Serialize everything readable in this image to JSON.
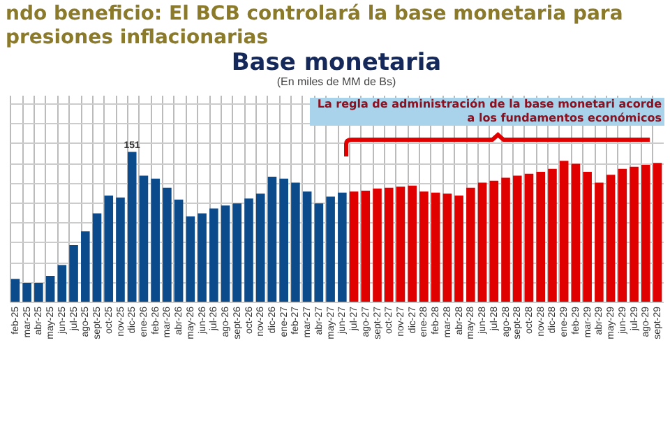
{
  "chart_data": {
    "type": "bar",
    "title": "Base monetaria",
    "subtitle": "(En miles de MM de Bs)",
    "annotations": [
      "ndo beneficio: El BCB controlará la base monetaria para presiones inflacionarias",
      "La regla de administración de la base monetari acorde a los fundamentos económicos"
    ],
    "categories": [
      "feb-25",
      "mar-25",
      "abr-25",
      "may-25",
      "jun-25",
      "jul-25",
      "ago-25",
      "sept-25",
      "oct-25",
      "nov-25",
      "dic-25",
      "ene-26",
      "feb-26",
      "mar-26",
      "abr-26",
      "may-26",
      "jun-26",
      "jul-26",
      "ago-26",
      "sept-26",
      "oct-26",
      "nov-26",
      "dic-26",
      "ene-27",
      "feb-27",
      "mar-27",
      "abr-27",
      "may-27",
      "jun-27",
      "jul-27",
      "ago-27",
      "sept-27",
      "oct-27",
      "nov-27",
      "dic-27",
      "ene-28",
      "feb-28",
      "mar-28",
      "abr-28",
      "may-28",
      "jun-28",
      "jul-28",
      "ago-28",
      "sept-28",
      "oct-28",
      "nov-28",
      "dic-28",
      "ene-29",
      "feb-29",
      "mar-29",
      "abr-29",
      "may-29",
      "jun-29",
      "jul-29",
      "ago-29",
      "sept-29"
    ],
    "values": [
      23,
      19,
      19,
      26,
      37,
      57,
      71,
      89,
      107,
      105,
      151,
      127,
      124,
      115,
      103,
      86,
      89,
      94,
      97,
      99,
      104,
      109,
      126,
      124,
      120,
      111,
      99,
      106,
      110,
      111,
      112,
      114,
      115,
      116,
      117,
      111,
      110,
      109,
      107,
      115,
      120,
      122,
      125,
      127,
      129,
      131,
      134,
      142,
      139,
      131,
      120,
      128,
      134,
      136,
      138,
      140
    ],
    "value_labels": [
      null,
      null,
      null,
      null,
      null,
      null,
      null,
      null,
      null,
      null,
      "151",
      null,
      null,
      null,
      null,
      null,
      null,
      null,
      null,
      null,
      null,
      null,
      null,
      null,
      null,
      null,
      null,
      null,
      null,
      null,
      null,
      null,
      null,
      null,
      null,
      null,
      null,
      null,
      null,
      null,
      null,
      null,
      null,
      null,
      null,
      null,
      null,
      null,
      null,
      null,
      null,
      null,
      null,
      null,
      null,
      null
    ],
    "colors": [
      "#0b4a8b",
      "#0b4a8b",
      "#0b4a8b",
      "#0b4a8b",
      "#0b4a8b",
      "#0b4a8b",
      "#0b4a8b",
      "#0b4a8b",
      "#0b4a8b",
      "#0b4a8b",
      "#0b4a8b",
      "#0b4a8b",
      "#0b4a8b",
      "#0b4a8b",
      "#0b4a8b",
      "#0b4a8b",
      "#0b4a8b",
      "#0b4a8b",
      "#0b4a8b",
      "#0b4a8b",
      "#0b4a8b",
      "#0b4a8b",
      "#0b4a8b",
      "#0b4a8b",
      "#0b4a8b",
      "#0b4a8b",
      "#0b4a8b",
      "#0b4a8b",
      "#0b4a8b",
      "#e00000",
      "#e00000",
      "#e00000",
      "#e00000",
      "#e00000",
      "#e00000",
      "#e00000",
      "#e00000",
      "#e00000",
      "#e00000",
      "#e00000",
      "#e00000",
      "#e00000",
      "#e00000",
      "#e00000",
      "#e00000",
      "#e00000",
      "#e00000",
      "#e00000",
      "#e00000",
      "#e00000",
      "#e00000",
      "#e00000",
      "#e00000",
      "#e00000",
      "#e00000",
      "#e00000"
    ],
    "tick_labels": "x",
    "grid": true
  }
}
